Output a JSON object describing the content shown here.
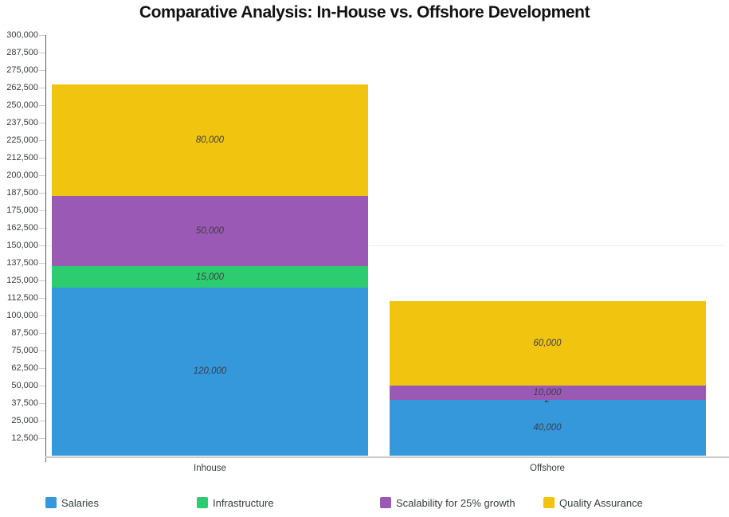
{
  "chart_data": {
    "type": "bar",
    "variant": "stacked-vertical",
    "title": "Comparative Analysis: In-House vs. Offshore Development",
    "categories": [
      "Inhouse",
      "Offshore"
    ],
    "series": [
      {
        "name": "Salaries",
        "color": "#3498db",
        "values": [
          120000,
          40000
        ]
      },
      {
        "name": "Infrastructure",
        "color": "#2ecc71",
        "values": [
          15000,
          2
        ]
      },
      {
        "name": "Scalability for 25% growth",
        "color": "#9b59b6",
        "values": [
          50000,
          10000
        ]
      },
      {
        "name": "Quality Assurance",
        "color": "#f1c40f",
        "values": [
          80000,
          60000
        ]
      }
    ],
    "data_labels": {
      "Inhouse": [
        "120,000",
        "15,000",
        "50,000",
        "80,000"
      ],
      "Offshore": [
        "40,000",
        "2",
        "10,000",
        "60,000"
      ],
      "style": "italic",
      "color": "#3b3f42"
    },
    "ylim": [
      0,
      300000
    ],
    "ytick_step": 12500,
    "ytick_labels": [
      "12,500",
      "25,000",
      "37,500",
      "50,000",
      "62,500",
      "75,000",
      "87,500",
      "100,000",
      "112,500",
      "125,000",
      "137,500",
      "150,000",
      "162,500",
      "175,000",
      "187,500",
      "200,000",
      "212,500",
      "225,000",
      "237,500",
      "250,000",
      "262,500",
      "275,000",
      "287,500",
      "300,000"
    ],
    "gridline_at": 150000,
    "xlabel": "",
    "ylabel": "",
    "legend_position": "bottom",
    "legend_entries": [
      "Salaries",
      "Infrastructure",
      "Scalability for 25% growth",
      "Quality Assurance"
    ],
    "axis_colors": {
      "y_axis_line": "#5b5b5b",
      "x_axis_line": "#c9c9c9",
      "tick_text": "#373d3f"
    }
  }
}
